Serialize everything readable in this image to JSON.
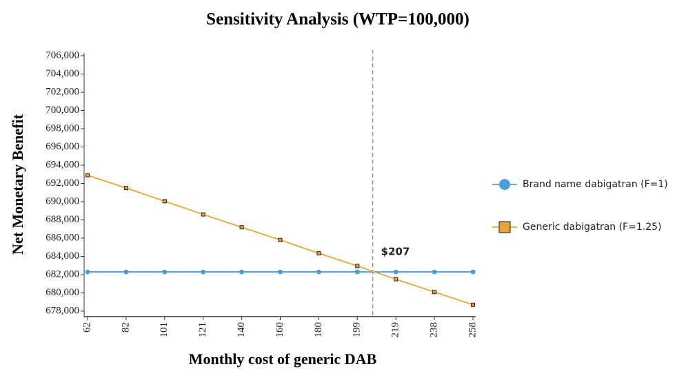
{
  "chart_data": {
    "type": "line",
    "title": "Sensitivity Analysis (WTP=100,000)",
    "x_label": "Monthly cost of generic DAB",
    "y_label": "Net Monetary Benefit",
    "categories": [
      62,
      82,
      101,
      121,
      140,
      160,
      180,
      199,
      219,
      238,
      258
    ],
    "series": [
      {
        "name": "Brand name dabigatran (F=1)",
        "color": "#4a9fd8",
        "marker": "circle",
        "values": [
          682300,
          682300,
          682300,
          682300,
          682300,
          682300,
          682300,
          682300,
          682300,
          682300,
          682300
        ]
      },
      {
        "name": "Generic dabigatran (F=1.25)",
        "color": "#e8a33a",
        "marker": "square",
        "values": [
          692900,
          691500,
          690050,
          688600,
          687200,
          685800,
          684350,
          682950,
          681500,
          680100,
          678700
        ]
      }
    ],
    "annotation": {
      "text": "$207",
      "x": 207
    },
    "ylim": [
      677400,
      706000
    ],
    "yticks": [
      {
        "value": 678000,
        "label": "678,000"
      },
      {
        "value": 680000,
        "label": "680,000"
      },
      {
        "value": 682000,
        "label": "682,000"
      },
      {
        "value": 684000,
        "label": "684,000"
      },
      {
        "value": 686000,
        "label": "686,000"
      },
      {
        "value": 688000,
        "label": "688,000"
      },
      {
        "value": 690000,
        "label": "690,000"
      },
      {
        "value": 692000,
        "label": "692,000"
      },
      {
        "value": 694000,
        "label": "694,000"
      },
      {
        "value": 696000,
        "label": "696,000"
      },
      {
        "value": 698000,
        "label": "698,000"
      },
      {
        "value": 700000,
        "label": "700,000"
      },
      {
        "value": 702000,
        "label": "702,000"
      },
      {
        "value": 704000,
        "label": "704,000"
      },
      {
        "value": 706000,
        "label": "706,000"
      }
    ],
    "grid": false,
    "legend": "right"
  }
}
